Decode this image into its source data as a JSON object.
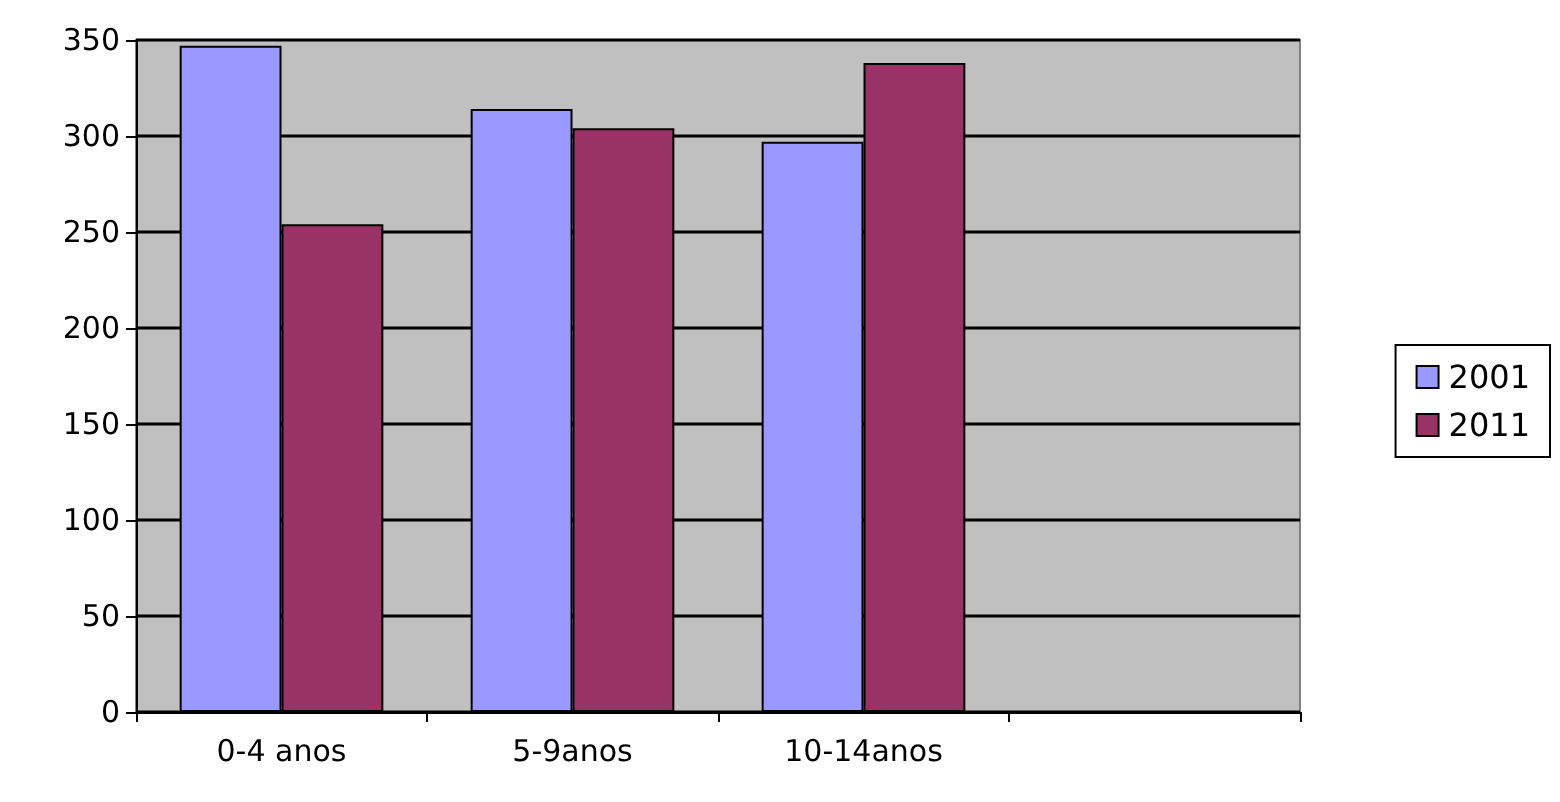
{
  "chart_data": {
    "type": "bar",
    "categories": [
      "0-4 anos",
      "5-9anos",
      "10-14anos",
      null
    ],
    "series": [
      {
        "name": "2001",
        "color": "#9999ff",
        "values": [
          347,
          314,
          297,
          null
        ]
      },
      {
        "name": "2011",
        "color": "#993366",
        "values": [
          254,
          304,
          338,
          null
        ]
      }
    ],
    "ylim": [
      0,
      350
    ],
    "yticks": [
      0,
      50,
      100,
      150,
      200,
      250,
      300,
      350
    ],
    "grid": "y",
    "legend": "right"
  }
}
